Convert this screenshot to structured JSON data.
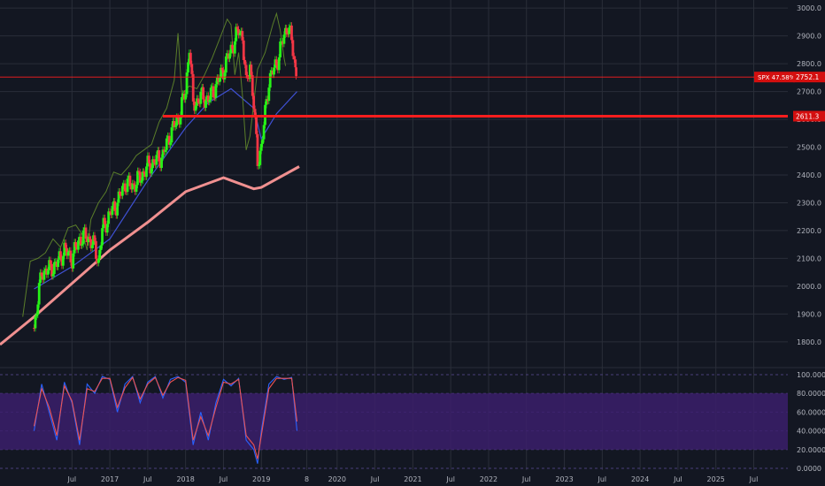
{
  "theme": {
    "background": "#131722",
    "grid": "#2a2e39",
    "axis_text": "#b2b5be",
    "candle_up": "#26f217",
    "candle_down": "#f23645",
    "level_line": "#ff1e1e",
    "rsi_band_fill": "#3b1f6b",
    "stoch_k": "#2962ff",
    "stoch_d": "#ef5350",
    "ma_short": "#3f51d5",
    "ma_long": "#f09090",
    "lagging_line": "#5a7d2a"
  },
  "chart_data": [
    {
      "type": "candlestick",
      "instrument": "SPX",
      "ylim": [
        1720,
        3010
      ],
      "y_ticks": [
        3000,
        2900,
        2800,
        2700,
        2600,
        2500,
        2400,
        2300,
        2200,
        2100,
        2000,
        1900,
        1800
      ],
      "y_tick_labels": [
        "3000.0",
        "2900.0",
        "2800.0",
        "2700.0",
        "2600.0",
        "2500.0",
        "2400.0",
        "2300.0",
        "2200.0",
        "2100.0",
        "2000.0",
        "1900.0",
        "1800.0"
      ],
      "x_labels": [
        "Jul",
        "2017",
        "Jul",
        "2018",
        "Jul",
        "2019",
        "8",
        "2020",
        "Jul",
        "2021",
        "Jul",
        "2022",
        "Jul",
        "2023",
        "Jul",
        "2024",
        "Jul",
        "2025",
        "Jul"
      ],
      "price_points": [
        [
          2016.0,
          1850
        ],
        [
          2016.1,
          2050
        ],
        [
          2016.2,
          2060
        ],
        [
          2016.3,
          2080
        ],
        [
          2016.4,
          2130
        ],
        [
          2016.5,
          2100
        ],
        [
          2016.6,
          2170
        ],
        [
          2016.7,
          2180
        ],
        [
          2016.8,
          2140
        ],
        [
          2016.85,
          2090
        ],
        [
          2016.9,
          2200
        ],
        [
          2017.0,
          2260
        ],
        [
          2017.1,
          2300
        ],
        [
          2017.2,
          2370
        ],
        [
          2017.3,
          2360
        ],
        [
          2017.4,
          2390
        ],
        [
          2017.5,
          2430
        ],
        [
          2017.6,
          2450
        ],
        [
          2017.7,
          2470
        ],
        [
          2017.8,
          2550
        ],
        [
          2017.9,
          2600
        ],
        [
          2018.0,
          2700
        ],
        [
          2018.05,
          2870
        ],
        [
          2018.1,
          2650
        ],
        [
          2018.2,
          2680
        ],
        [
          2018.3,
          2670
        ],
        [
          2018.4,
          2720
        ],
        [
          2018.5,
          2780
        ],
        [
          2018.6,
          2850
        ],
        [
          2018.7,
          2920
        ],
        [
          2018.75,
          2900
        ],
        [
          2018.8,
          2720
        ],
        [
          2018.85,
          2800
        ],
        [
          2018.9,
          2650
        ],
        [
          2018.95,
          2450
        ],
        [
          2019.0,
          2500
        ],
        [
          2019.1,
          2740
        ],
        [
          2019.2,
          2800
        ],
        [
          2019.3,
          2900
        ],
        [
          2019.35,
          2940
        ],
        [
          2019.4,
          2880
        ],
        [
          2019.45,
          2780
        ],
        [
          2019.47,
          2752
        ]
      ],
      "ma_short": [
        [
          2016.0,
          1990
        ],
        [
          2016.5,
          2070
        ],
        [
          2017.0,
          2170
        ],
        [
          2017.5,
          2380
        ],
        [
          2018.0,
          2570
        ],
        [
          2018.3,
          2660
        ],
        [
          2018.6,
          2710
        ],
        [
          2018.9,
          2640
        ],
        [
          2019.0,
          2530
        ],
        [
          2019.2,
          2620
        ],
        [
          2019.47,
          2700
        ]
      ],
      "ma_long": [
        [
          2015.55,
          1790
        ],
        [
          2016.0,
          1890
        ],
        [
          2016.5,
          2010
        ],
        [
          2017.0,
          2130
        ],
        [
          2017.5,
          2230
        ],
        [
          2018.0,
          2340
        ],
        [
          2018.5,
          2390
        ],
        [
          2018.9,
          2350
        ],
        [
          2019.0,
          2355
        ],
        [
          2019.5,
          2430
        ]
      ],
      "horizontal_levels": [
        {
          "value": 2611.3,
          "label": "2611.3",
          "thick": true
        },
        {
          "value": 2752.1,
          "label": "SPX 47.58%  2752.1",
          "thick": false
        }
      ],
      "labels": {
        "price_badge": "SPX 47.58%",
        "price_value": "2752.1",
        "level_value": "2611.3"
      }
    },
    {
      "type": "line",
      "indicator": "stochastic",
      "ylim": [
        0,
        100
      ],
      "y_tick_labels": [
        "100.0000",
        "80.0000",
        "60.0000",
        "40.0000",
        "20.0000",
        "0.0000"
      ],
      "y_ticks": [
        100,
        80,
        60,
        40,
        20,
        0
      ],
      "band": [
        20,
        80
      ],
      "series": [
        {
          "values": [
            [
              2016.0,
              40
            ],
            [
              2016.1,
              90
            ],
            [
              2016.2,
              60
            ],
            [
              2016.3,
              30
            ],
            [
              2016.4,
              92
            ],
            [
              2016.5,
              70
            ],
            [
              2016.6,
              25
            ],
            [
              2016.7,
              90
            ],
            [
              2016.8,
              80
            ],
            [
              2016.9,
              98
            ],
            [
              2017.0,
              95
            ],
            [
              2017.1,
              60
            ],
            [
              2017.2,
              90
            ],
            [
              2017.3,
              98
            ],
            [
              2017.4,
              70
            ],
            [
              2017.5,
              92
            ],
            [
              2017.6,
              98
            ],
            [
              2017.7,
              75
            ],
            [
              2017.8,
              95
            ],
            [
              2017.9,
              98
            ],
            [
              2018.0,
              92
            ],
            [
              2018.1,
              25
            ],
            [
              2018.2,
              60
            ],
            [
              2018.3,
              30
            ],
            [
              2018.4,
              70
            ],
            [
              2018.5,
              95
            ],
            [
              2018.6,
              88
            ],
            [
              2018.7,
              96
            ],
            [
              2018.8,
              30
            ],
            [
              2018.9,
              20
            ],
            [
              2018.95,
              5
            ],
            [
              2019.0,
              40
            ],
            [
              2019.1,
              90
            ],
            [
              2019.2,
              98
            ],
            [
              2019.3,
              95
            ],
            [
              2019.4,
              97
            ],
            [
              2019.47,
              40
            ]
          ]
        },
        {
          "values": [
            [
              2016.0,
              45
            ],
            [
              2016.1,
              85
            ],
            [
              2016.2,
              65
            ],
            [
              2016.3,
              35
            ],
            [
              2016.4,
              88
            ],
            [
              2016.5,
              72
            ],
            [
              2016.6,
              30
            ],
            [
              2016.7,
              85
            ],
            [
              2016.8,
              82
            ],
            [
              2016.9,
              96
            ],
            [
              2017.0,
              96
            ],
            [
              2017.1,
              65
            ],
            [
              2017.2,
              86
            ],
            [
              2017.3,
              97
            ],
            [
              2017.4,
              74
            ],
            [
              2017.5,
              90
            ],
            [
              2017.6,
              97
            ],
            [
              2017.7,
              78
            ],
            [
              2017.8,
              92
            ],
            [
              2017.9,
              97
            ],
            [
              2018.0,
              94
            ],
            [
              2018.1,
              30
            ],
            [
              2018.2,
              55
            ],
            [
              2018.3,
              35
            ],
            [
              2018.4,
              65
            ],
            [
              2018.5,
              92
            ],
            [
              2018.6,
              90
            ],
            [
              2018.7,
              95
            ],
            [
              2018.8,
              35
            ],
            [
              2018.9,
              25
            ],
            [
              2018.95,
              10
            ],
            [
              2019.0,
              35
            ],
            [
              2019.1,
              85
            ],
            [
              2019.2,
              96
            ],
            [
              2019.3,
              96
            ],
            [
              2019.4,
              96
            ],
            [
              2019.47,
              50
            ]
          ]
        }
      ]
    }
  ]
}
